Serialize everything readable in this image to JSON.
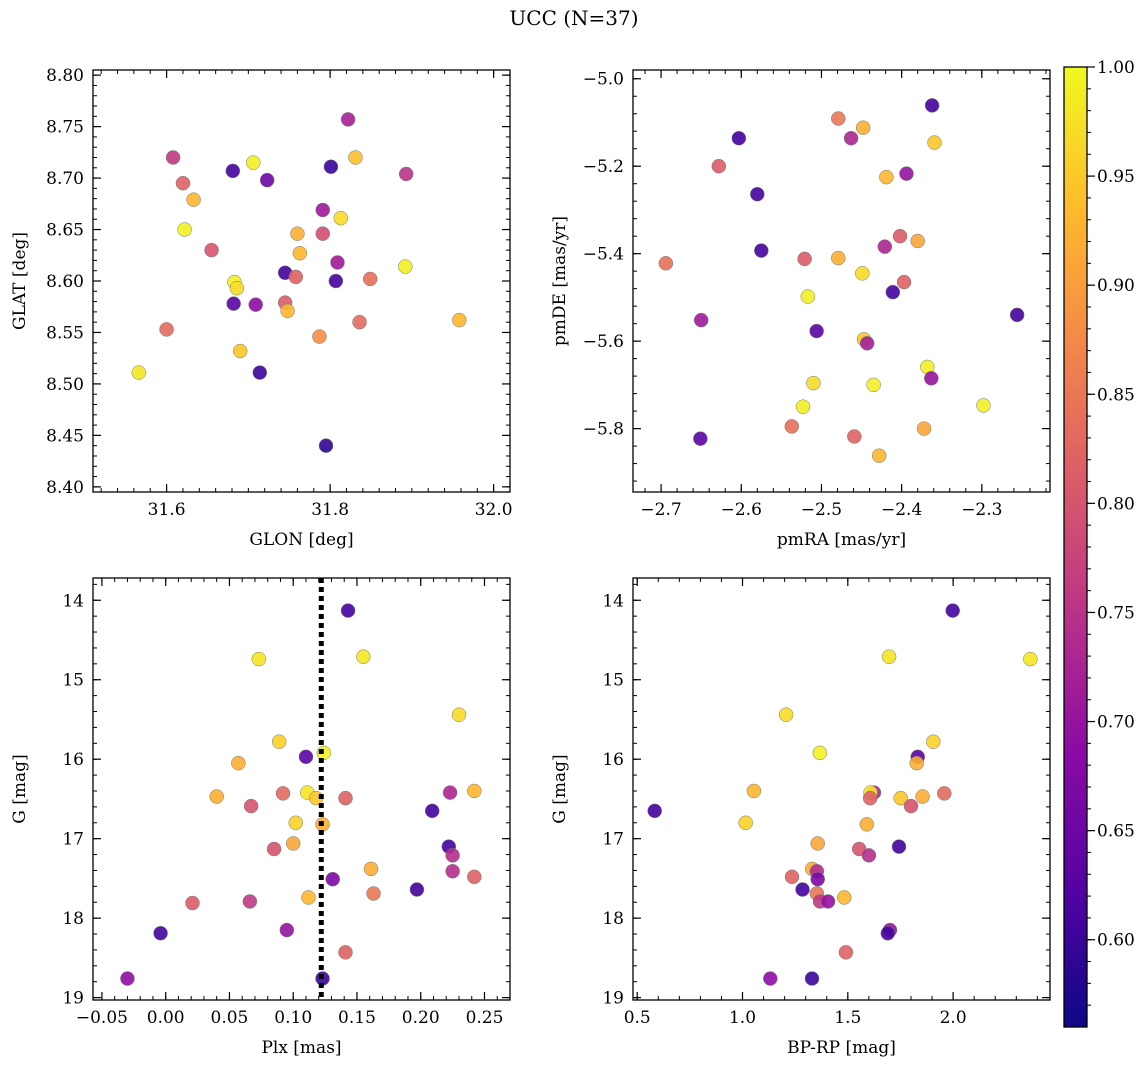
{
  "figure": {
    "title": "UCC (N=37)"
  },
  "colorbar": {
    "min": 0.56,
    "max": 1.0,
    "ticks": [
      0.6,
      0.65,
      0.7,
      0.75,
      0.8,
      0.85,
      0.9,
      0.95,
      1.0
    ],
    "colormap": "plasma"
  },
  "chart_data": [
    {
      "type": "scatter",
      "xlabel": "GLON [deg]",
      "ylabel": "GLAT [deg]",
      "xlim": [
        31.51,
        32.02
      ],
      "ylim": [
        8.395,
        8.805
      ],
      "yinverted": false,
      "xticks": [
        31.6,
        31.8,
        32.0
      ],
      "yticks": [
        8.4,
        8.45,
        8.5,
        8.55,
        8.6,
        8.65,
        8.7,
        8.75,
        8.8
      ],
      "xminor": 0.02,
      "yminor": 0.01,
      "xdec": 1,
      "ydec": 2,
      "points": [
        {
          "x": 31.822,
          "y": 8.757,
          "c": 0.72
        },
        {
          "x": 31.608,
          "y": 8.72,
          "c": 0.76
        },
        {
          "x": 31.831,
          "y": 8.72,
          "c": 0.94
        },
        {
          "x": 31.706,
          "y": 8.715,
          "c": 0.99
        },
        {
          "x": 31.801,
          "y": 8.711,
          "c": 0.6
        },
        {
          "x": 31.681,
          "y": 8.707,
          "c": 0.61
        },
        {
          "x": 31.893,
          "y": 8.704,
          "c": 0.75
        },
        {
          "x": 31.723,
          "y": 8.698,
          "c": 0.65
        },
        {
          "x": 31.62,
          "y": 8.695,
          "c": 0.82
        },
        {
          "x": 31.633,
          "y": 8.679,
          "c": 0.93
        },
        {
          "x": 31.791,
          "y": 8.669,
          "c": 0.71
        },
        {
          "x": 31.813,
          "y": 8.661,
          "c": 0.97
        },
        {
          "x": 31.622,
          "y": 8.65,
          "c": 0.99
        },
        {
          "x": 31.76,
          "y": 8.646,
          "c": 0.92
        },
        {
          "x": 31.791,
          "y": 8.646,
          "c": 0.79
        },
        {
          "x": 31.655,
          "y": 8.63,
          "c": 0.8
        },
        {
          "x": 31.763,
          "y": 8.627,
          "c": 0.93
        },
        {
          "x": 31.809,
          "y": 8.618,
          "c": 0.71
        },
        {
          "x": 31.892,
          "y": 8.614,
          "c": 0.99
        },
        {
          "x": 31.745,
          "y": 8.608,
          "c": 0.61
        },
        {
          "x": 31.758,
          "y": 8.604,
          "c": 0.82
        },
        {
          "x": 31.849,
          "y": 8.602,
          "c": 0.84
        },
        {
          "x": 31.807,
          "y": 8.6,
          "c": 0.61
        },
        {
          "x": 31.683,
          "y": 8.599,
          "c": 0.99
        },
        {
          "x": 31.686,
          "y": 8.593,
          "c": 0.97
        },
        {
          "x": 31.745,
          "y": 8.579,
          "c": 0.81
        },
        {
          "x": 31.682,
          "y": 8.578,
          "c": 0.63
        },
        {
          "x": 31.709,
          "y": 8.577,
          "c": 0.69
        },
        {
          "x": 31.748,
          "y": 8.571,
          "c": 0.93
        },
        {
          "x": 31.958,
          "y": 8.562,
          "c": 0.93
        },
        {
          "x": 31.836,
          "y": 8.56,
          "c": 0.83
        },
        {
          "x": 31.6,
          "y": 8.553,
          "c": 0.83
        },
        {
          "x": 31.787,
          "y": 8.546,
          "c": 0.88
        },
        {
          "x": 31.69,
          "y": 8.532,
          "c": 0.95
        },
        {
          "x": 31.566,
          "y": 8.511,
          "c": 0.98
        },
        {
          "x": 31.714,
          "y": 8.511,
          "c": 0.6
        },
        {
          "x": 31.795,
          "y": 8.44,
          "c": 0.59
        }
      ]
    },
    {
      "type": "scatter",
      "xlabel": "pmRA [mas/yr]",
      "ylabel": "pmDE [mas/yr]",
      "xlim": [
        -2.735,
        -2.215
      ],
      "ylim": [
        -5.945,
        -4.98
      ],
      "yinverted": false,
      "xticks": [
        -2.7,
        -2.6,
        -2.5,
        -2.4,
        -2.3
      ],
      "yticks": [
        -5.8,
        -5.6,
        -5.4,
        -5.2,
        -5.0
      ],
      "xminor": 0.02,
      "yminor": 0.04,
      "xdec": 1,
      "ydec": 1,
      "points": [
        {
          "x": -2.362,
          "y": -5.061,
          "c": 0.61
        },
        {
          "x": -2.479,
          "y": -5.091,
          "c": 0.85
        },
        {
          "x": -2.448,
          "y": -5.112,
          "c": 0.92
        },
        {
          "x": -2.603,
          "y": -5.136,
          "c": 0.61
        },
        {
          "x": -2.463,
          "y": -5.136,
          "c": 0.73
        },
        {
          "x": -2.359,
          "y": -5.146,
          "c": 0.95
        },
        {
          "x": -2.628,
          "y": -5.2,
          "c": 0.81
        },
        {
          "x": -2.394,
          "y": -5.217,
          "c": 0.7
        },
        {
          "x": -2.419,
          "y": -5.225,
          "c": 0.93
        },
        {
          "x": -2.58,
          "y": -5.264,
          "c": 0.61
        },
        {
          "x": -2.402,
          "y": -5.36,
          "c": 0.81
        },
        {
          "x": -2.38,
          "y": -5.371,
          "c": 0.91
        },
        {
          "x": -2.421,
          "y": -5.384,
          "c": 0.73
        },
        {
          "x": -2.575,
          "y": -5.393,
          "c": 0.61
        },
        {
          "x": -2.479,
          "y": -5.41,
          "c": 0.92
        },
        {
          "x": -2.521,
          "y": -5.412,
          "c": 0.81
        },
        {
          "x": -2.694,
          "y": -5.422,
          "c": 0.84
        },
        {
          "x": -2.449,
          "y": -5.445,
          "c": 0.97
        },
        {
          "x": -2.397,
          "y": -5.465,
          "c": 0.82
        },
        {
          "x": -2.411,
          "y": -5.488,
          "c": 0.61
        },
        {
          "x": -2.517,
          "y": -5.498,
          "c": 0.99
        },
        {
          "x": -2.256,
          "y": -5.54,
          "c": 0.61
        },
        {
          "x": -2.65,
          "y": -5.552,
          "c": 0.71
        },
        {
          "x": -2.506,
          "y": -5.577,
          "c": 0.63
        },
        {
          "x": -2.447,
          "y": -5.596,
          "c": 0.95
        },
        {
          "x": -2.443,
          "y": -5.605,
          "c": 0.72
        },
        {
          "x": -2.368,
          "y": -5.659,
          "c": 0.99
        },
        {
          "x": -2.363,
          "y": -5.685,
          "c": 0.7
        },
        {
          "x": -2.51,
          "y": -5.696,
          "c": 0.97
        },
        {
          "x": -2.435,
          "y": -5.7,
          "c": 0.99
        },
        {
          "x": -2.298,
          "y": -5.747,
          "c": 0.99
        },
        {
          "x": -2.523,
          "y": -5.75,
          "c": 0.99
        },
        {
          "x": -2.537,
          "y": -5.795,
          "c": 0.84
        },
        {
          "x": -2.372,
          "y": -5.8,
          "c": 0.91
        },
        {
          "x": -2.459,
          "y": -5.818,
          "c": 0.82
        },
        {
          "x": -2.651,
          "y": -5.823,
          "c": 0.63
        },
        {
          "x": -2.428,
          "y": -5.862,
          "c": 0.93
        }
      ]
    },
    {
      "type": "scatter",
      "xlabel": "Plx [mas]",
      "ylabel": "G [mag]",
      "xlim": [
        -0.057,
        0.27
      ],
      "ylim": [
        13.72,
        19.03
      ],
      "yinverted": true,
      "xticks": [
        -0.05,
        0.0,
        0.05,
        0.1,
        0.15,
        0.2,
        0.25
      ],
      "yticks": [
        14,
        15,
        16,
        17,
        18,
        19
      ],
      "xminor": 0.01,
      "yminor": 0.2,
      "xdec": 2,
      "ydec": 0,
      "vline": {
        "x": 0.122
      },
      "points": [
        {
          "x": 0.143,
          "y": 14.13,
          "c": 0.61
        },
        {
          "x": 0.073,
          "y": 14.74,
          "c": 0.98
        },
        {
          "x": 0.155,
          "y": 14.71,
          "c": 0.98
        },
        {
          "x": 0.23,
          "y": 15.44,
          "c": 0.97
        },
        {
          "x": 0.089,
          "y": 15.78,
          "c": 0.96
        },
        {
          "x": 0.124,
          "y": 15.92,
          "c": 0.99
        },
        {
          "x": 0.11,
          "y": 15.97,
          "c": 0.63
        },
        {
          "x": 0.057,
          "y": 16.05,
          "c": 0.92
        },
        {
          "x": 0.242,
          "y": 16.4,
          "c": 0.93
        },
        {
          "x": 0.092,
          "y": 16.43,
          "c": 0.83
        },
        {
          "x": 0.111,
          "y": 16.42,
          "c": 0.98
        },
        {
          "x": 0.223,
          "y": 16.42,
          "c": 0.73
        },
        {
          "x": 0.04,
          "y": 16.47,
          "c": 0.92
        },
        {
          "x": 0.118,
          "y": 16.49,
          "c": 0.95
        },
        {
          "x": 0.141,
          "y": 16.49,
          "c": 0.82
        },
        {
          "x": 0.067,
          "y": 16.59,
          "c": 0.8
        },
        {
          "x": 0.209,
          "y": 16.65,
          "c": 0.61
        },
        {
          "x": 0.102,
          "y": 16.8,
          "c": 0.96
        },
        {
          "x": 0.123,
          "y": 16.82,
          "c": 0.92
        },
        {
          "x": 0.1,
          "y": 17.06,
          "c": 0.91
        },
        {
          "x": 0.222,
          "y": 17.1,
          "c": 0.61
        },
        {
          "x": 0.085,
          "y": 17.13,
          "c": 0.8
        },
        {
          "x": 0.225,
          "y": 17.21,
          "c": 0.74
        },
        {
          "x": 0.161,
          "y": 17.38,
          "c": 0.92
        },
        {
          "x": 0.225,
          "y": 17.41,
          "c": 0.74
        },
        {
          "x": 0.242,
          "y": 17.48,
          "c": 0.82
        },
        {
          "x": 0.131,
          "y": 17.51,
          "c": 0.67
        },
        {
          "x": 0.197,
          "y": 17.64,
          "c": 0.61
        },
        {
          "x": 0.163,
          "y": 17.69,
          "c": 0.85
        },
        {
          "x": 0.112,
          "y": 17.74,
          "c": 0.93
        },
        {
          "x": 0.066,
          "y": 17.79,
          "c": 0.76
        },
        {
          "x": 0.021,
          "y": 17.81,
          "c": 0.81
        },
        {
          "x": 0.095,
          "y": 18.15,
          "c": 0.7
        },
        {
          "x": -0.004,
          "y": 18.19,
          "c": 0.61
        },
        {
          "x": 0.141,
          "y": 18.43,
          "c": 0.82
        },
        {
          "x": -0.03,
          "y": 18.76,
          "c": 0.69
        },
        {
          "x": 0.123,
          "y": 18.76,
          "c": 0.6
        }
      ]
    },
    {
      "type": "scatter",
      "xlabel": "BP-RP [mag]",
      "ylabel": "G [mag]",
      "xlim": [
        0.48,
        2.46
      ],
      "ylim": [
        13.72,
        19.03
      ],
      "yinverted": true,
      "xticks": [
        0.5,
        1.0,
        1.5,
        2.0
      ],
      "yticks": [
        14,
        15,
        16,
        17,
        18,
        19
      ],
      "xminor": 0.1,
      "yminor": 0.2,
      "xdec": 1,
      "ydec": 0,
      "points": [
        {
          "x": 1.998,
          "y": 14.13,
          "c": 0.61
        },
        {
          "x": 1.696,
          "y": 14.71,
          "c": 0.98
        },
        {
          "x": 2.367,
          "y": 14.74,
          "c": 0.98
        },
        {
          "x": 1.207,
          "y": 15.44,
          "c": 0.97
        },
        {
          "x": 1.906,
          "y": 15.78,
          "c": 0.96
        },
        {
          "x": 1.367,
          "y": 15.92,
          "c": 0.99
        },
        {
          "x": 1.832,
          "y": 15.97,
          "c": 0.63
        },
        {
          "x": 1.827,
          "y": 16.05,
          "c": 0.92
        },
        {
          "x": 1.054,
          "y": 16.4,
          "c": 0.93
        },
        {
          "x": 1.958,
          "y": 16.43,
          "c": 0.83
        },
        {
          "x": 1.624,
          "y": 16.42,
          "c": 0.73
        },
        {
          "x": 1.608,
          "y": 16.42,
          "c": 0.98
        },
        {
          "x": 1.606,
          "y": 16.49,
          "c": 0.82
        },
        {
          "x": 1.751,
          "y": 16.49,
          "c": 0.95
        },
        {
          "x": 1.855,
          "y": 16.47,
          "c": 0.92
        },
        {
          "x": 1.8,
          "y": 16.59,
          "c": 0.8
        },
        {
          "x": 0.583,
          "y": 16.65,
          "c": 0.61
        },
        {
          "x": 1.015,
          "y": 16.8,
          "c": 0.96
        },
        {
          "x": 1.59,
          "y": 16.82,
          "c": 0.92
        },
        {
          "x": 1.357,
          "y": 17.06,
          "c": 0.91
        },
        {
          "x": 1.743,
          "y": 17.1,
          "c": 0.61
        },
        {
          "x": 1.554,
          "y": 17.13,
          "c": 0.8
        },
        {
          "x": 1.6,
          "y": 17.21,
          "c": 0.74
        },
        {
          "x": 1.331,
          "y": 17.38,
          "c": 0.92
        },
        {
          "x": 1.353,
          "y": 17.41,
          "c": 0.74
        },
        {
          "x": 1.235,
          "y": 17.48,
          "c": 0.82
        },
        {
          "x": 1.357,
          "y": 17.51,
          "c": 0.67
        },
        {
          "x": 1.285,
          "y": 17.64,
          "c": 0.61
        },
        {
          "x": 1.353,
          "y": 17.69,
          "c": 0.85
        },
        {
          "x": 1.483,
          "y": 17.74,
          "c": 0.93
        },
        {
          "x": 1.368,
          "y": 17.79,
          "c": 0.76
        },
        {
          "x": 1.406,
          "y": 17.79,
          "c": 0.7
        },
        {
          "x": 1.7,
          "y": 18.15,
          "c": 0.7
        },
        {
          "x": 1.69,
          "y": 18.19,
          "c": 0.61
        },
        {
          "x": 1.491,
          "y": 18.43,
          "c": 0.82
        },
        {
          "x": 1.132,
          "y": 18.76,
          "c": 0.69
        },
        {
          "x": 1.33,
          "y": 18.76,
          "c": 0.6
        }
      ]
    }
  ]
}
